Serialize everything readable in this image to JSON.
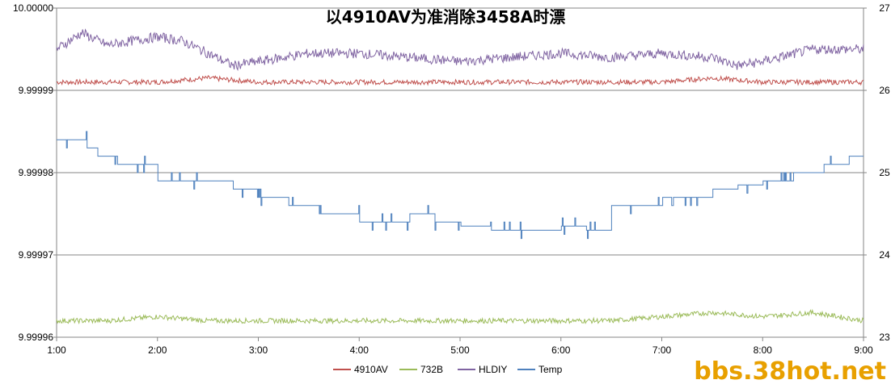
{
  "chart_data": {
    "type": "line",
    "title": "以4910AV为准消除3458A时漂",
    "x_ticks": [
      "1:00",
      "2:00",
      "3:00",
      "4:00",
      "5:00",
      "6:00",
      "7:00",
      "8:00",
      "9:00"
    ],
    "x_range": [
      1,
      9
    ],
    "y_left_ticks": [
      "10.00000",
      "9.99999",
      "9.99998",
      "9.99997",
      "9.99996"
    ],
    "y_left_range": [
      9.99996,
      10.0
    ],
    "y_right_ticks": [
      "27",
      "26",
      "25",
      "24",
      "23"
    ],
    "y_right_range": [
      23,
      27
    ],
    "grid": "horizontal",
    "legend_position": "bottom",
    "series": [
      {
        "name": "4910AV",
        "axis": "left",
        "color": "#c0504d",
        "x": [
          1.0,
          1.5,
          2.0,
          2.5,
          3.0,
          3.5,
          4.0,
          4.5,
          5.0,
          5.5,
          6.0,
          6.5,
          7.0,
          7.5,
          8.0,
          8.5,
          9.0
        ],
        "y": [
          9.999991,
          9.999991,
          9.999991,
          9.9999915,
          9.999991,
          9.999991,
          9.999991,
          9.999991,
          9.999991,
          9.999991,
          9.999991,
          9.999991,
          9.999991,
          9.9999915,
          9.999991,
          9.999991,
          9.999991
        ]
      },
      {
        "name": "732B",
        "axis": "left",
        "color": "#9bbb59",
        "x": [
          1.0,
          1.5,
          2.0,
          2.5,
          3.0,
          3.5,
          4.0,
          4.5,
          5.0,
          5.5,
          6.0,
          6.5,
          7.0,
          7.5,
          8.0,
          8.5,
          9.0
        ],
        "y": [
          9.999962,
          9.999962,
          9.9999625,
          9.999962,
          9.999962,
          9.999962,
          9.999962,
          9.999962,
          9.999962,
          9.999962,
          9.999962,
          9.999962,
          9.9999625,
          9.999963,
          9.9999625,
          9.999963,
          9.999962
        ]
      },
      {
        "name": "HLDIY",
        "axis": "left",
        "color": "#8064a2",
        "x": [
          1.0,
          1.25,
          1.5,
          2.0,
          2.25,
          2.5,
          2.75,
          3.0,
          3.5,
          4.0,
          4.5,
          5.0,
          5.5,
          6.0,
          6.5,
          7.0,
          7.5,
          7.75,
          8.0,
          8.5,
          9.0
        ],
        "y": [
          9.999995,
          9.999997,
          9.9999955,
          9.9999965,
          9.999996,
          9.9999945,
          9.999993,
          9.9999935,
          9.9999945,
          9.9999945,
          9.999994,
          9.9999935,
          9.999994,
          9.9999945,
          9.999994,
          9.9999945,
          9.999994,
          9.999993,
          9.9999935,
          9.999995,
          9.999995
        ]
      },
      {
        "name": "Temp",
        "axis": "right",
        "color": "#4f81bd",
        "x": [
          1.0,
          1.15,
          1.3,
          1.4,
          1.6,
          2.0,
          2.5,
          2.75,
          3.0,
          3.3,
          3.6,
          4.0,
          4.5,
          4.75,
          5.0,
          5.3,
          5.6,
          6.0,
          6.25,
          6.5,
          6.75,
          7.0,
          7.5,
          7.75,
          8.0,
          8.3,
          8.6,
          8.85,
          9.0
        ],
        "y": [
          25.4,
          25.4,
          25.3,
          25.2,
          25.1,
          24.9,
          24.9,
          24.8,
          24.7,
          24.6,
          24.5,
          24.4,
          24.5,
          24.4,
          24.35,
          24.3,
          24.3,
          24.35,
          24.3,
          24.6,
          24.6,
          24.7,
          24.8,
          24.85,
          24.9,
          25.0,
          25.1,
          25.2,
          25.3
        ]
      }
    ]
  },
  "watermark": "bbs.38hot.net"
}
